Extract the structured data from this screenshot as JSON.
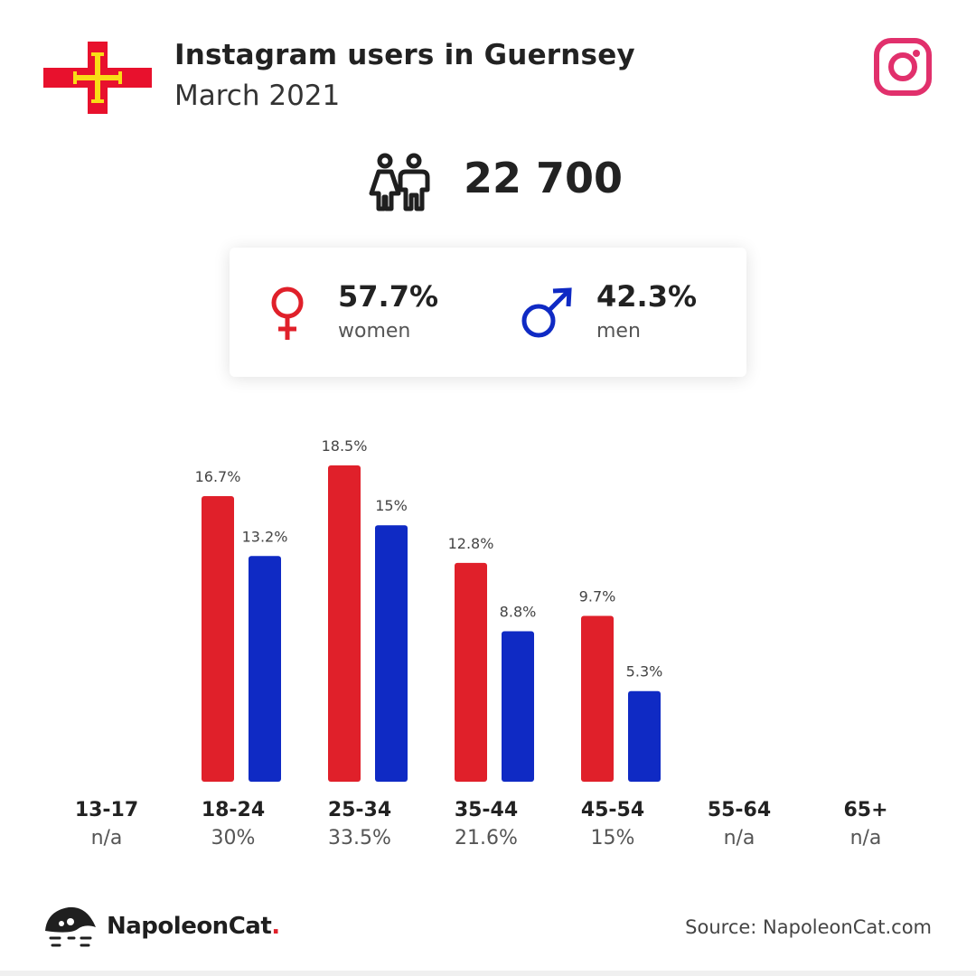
{
  "header": {
    "title": "Instagram users in Guernsey",
    "subtitle": "March 2021",
    "flag_icon": "guernsey-flag-icon",
    "platform_icon": "instagram-icon"
  },
  "totals": {
    "users": "22 700",
    "icon": "people-icon"
  },
  "gender": {
    "women": {
      "pct": "57.7%",
      "label": "women",
      "icon": "female-symbol-icon",
      "color": "#e0202a"
    },
    "men": {
      "pct": "42.3%",
      "label": "men",
      "icon": "male-symbol-icon",
      "color": "#0f2ac4"
    }
  },
  "chart_data": {
    "type": "bar",
    "categories": [
      "13-17",
      "18-24",
      "25-34",
      "35-44",
      "45-54",
      "55-64",
      "65+"
    ],
    "category_totals": [
      "n/a",
      "30%",
      "33.5%",
      "21.6%",
      "15%",
      "n/a",
      "n/a"
    ],
    "series": [
      {
        "values": [
          null,
          16.7,
          18.5,
          12.8,
          9.7,
          null,
          null
        ],
        "labels": [
          "",
          "16.7%",
          "18.5%",
          "12.8%",
          "9.7%",
          "",
          ""
        ],
        "color": "#e0202a"
      },
      {
        "values": [
          null,
          13.2,
          15,
          8.8,
          5.3,
          null,
          null
        ],
        "labels": [
          "",
          "13.2%",
          "15%",
          "8.8%",
          "5.3%",
          "",
          ""
        ],
        "color": "#0f2ac4"
      }
    ],
    "ylim": [
      0,
      20
    ],
    "grid": false,
    "legend": "none"
  },
  "footer": {
    "brand": "NapoleonCat",
    "brand_dot": ".",
    "source": "Source: NapoleonCat.com",
    "logo_icon": "napoleoncat-logo-icon"
  }
}
